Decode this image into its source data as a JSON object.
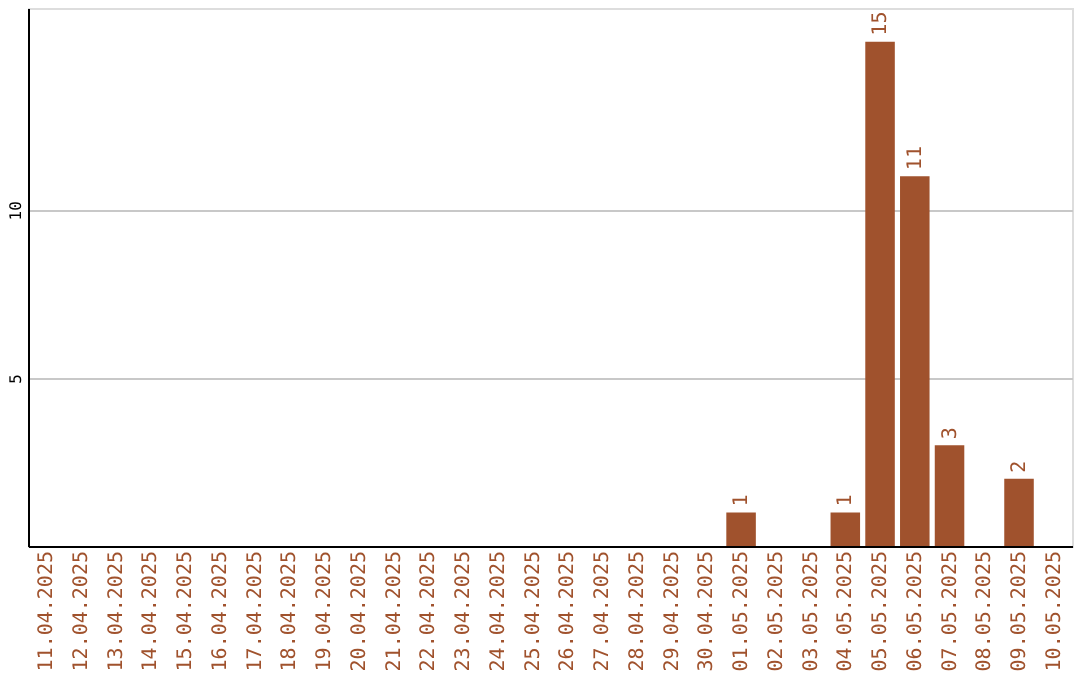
{
  "chart_data": {
    "type": "bar",
    "categories": [
      "11.04.2025",
      "12.04.2025",
      "13.04.2025",
      "14.04.2025",
      "15.04.2025",
      "16.04.2025",
      "17.04.2025",
      "18.04.2025",
      "19.04.2025",
      "20.04.2025",
      "21.04.2025",
      "22.04.2025",
      "23.04.2025",
      "24.04.2025",
      "25.04.2025",
      "26.04.2025",
      "27.04.2025",
      "28.04.2025",
      "29.04.2025",
      "30.04.2025",
      "01.05.2025",
      "02.05.2025",
      "03.05.2025",
      "04.05.2025",
      "05.05.2025",
      "06.05.2025",
      "07.05.2025",
      "08.05.2025",
      "09.05.2025",
      "10.05.2025"
    ],
    "values": [
      0,
      0,
      0,
      0,
      0,
      0,
      0,
      0,
      0,
      0,
      0,
      0,
      0,
      0,
      0,
      0,
      0,
      0,
      0,
      0,
      1,
      0,
      0,
      1,
      15,
      11,
      3,
      0,
      2,
      0
    ],
    "value_labels": [
      null,
      null,
      null,
      null,
      null,
      null,
      null,
      null,
      null,
      null,
      null,
      null,
      null,
      null,
      null,
      null,
      null,
      null,
      null,
      null,
      "1",
      null,
      null,
      "1",
      "15",
      "11",
      "3",
      null,
      "2",
      null
    ],
    "color": "#a0522d",
    "ylim": [
      0,
      16
    ],
    "yticks": [
      5,
      10
    ],
    "grid": "y"
  }
}
